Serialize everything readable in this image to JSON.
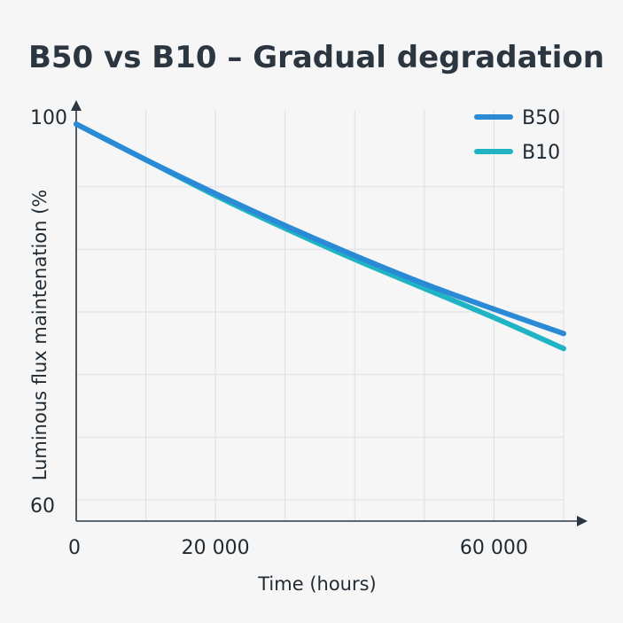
{
  "chart_data": {
    "type": "line",
    "title": "B50 vs B10 – Gradual degradation",
    "xlabel": "Time (hours)",
    "ylabel": "Luminous flux maintenation (%",
    "xlim": [
      0,
      70000
    ],
    "ylim": [
      60,
      100
    ],
    "x_ticks": [
      0,
      20000,
      60000
    ],
    "x_tick_labels": [
      "0",
      "20 000",
      "60 000"
    ],
    "y_ticks": [
      100,
      60
    ],
    "y_tick_labels": [
      "100",
      "60"
    ],
    "grid": true,
    "legend_position": "top-right",
    "x": [
      0,
      10000,
      20000,
      30000,
      40000,
      50000,
      60000,
      70000
    ],
    "series": [
      {
        "name": "B50",
        "color": "#2a8ad6",
        "values": [
          100,
          96.2,
          92.6,
          89.2,
          86.0,
          83.0,
          80.3,
          77.7
        ]
      },
      {
        "name": "B10",
        "color": "#1fb3c4",
        "values": [
          100,
          96.2,
          92.4,
          88.9,
          85.6,
          82.5,
          79.4,
          76.1
        ]
      }
    ]
  }
}
